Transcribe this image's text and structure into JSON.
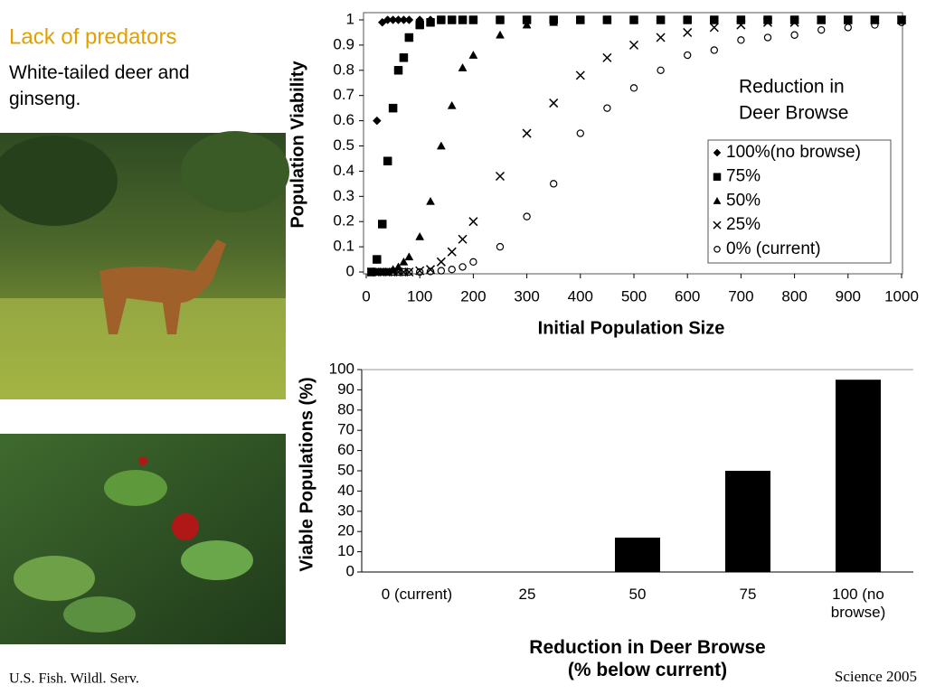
{
  "slide": {
    "title": "Lack of predators",
    "subtitle": "White-tailed deer and ginseng.",
    "credit_left": "U.S. Fish. Wildl. Serv.",
    "credit_right": "Science 2005"
  },
  "chart_data": [
    {
      "type": "scatter",
      "y_label": "Population Viability",
      "x_label": "Initial Population Size",
      "legend_title": [
        "Reduction in",
        "Deer Browse"
      ],
      "x": [
        10,
        20,
        30,
        40,
        50,
        60,
        70,
        80,
        100,
        120,
        140,
        160,
        180,
        200,
        250,
        300,
        350,
        400,
        450,
        500,
        550,
        600,
        650,
        700,
        750,
        800,
        850,
        900,
        950,
        1000
      ],
      "series": [
        {
          "name": "100%(no browse)",
          "marker": "diamond",
          "color": "#000000",
          "values": [
            0,
            0.6,
            0.99,
            1,
            1,
            1,
            1,
            1,
            1,
            1,
            1,
            1,
            1,
            1,
            1,
            1,
            1,
            1,
            1,
            1,
            1,
            1,
            1,
            1,
            1,
            1,
            1,
            1,
            1,
            1
          ]
        },
        {
          "name": "75%",
          "marker": "square",
          "color": "#000000",
          "values": [
            0,
            0.05,
            0.19,
            0.44,
            0.65,
            0.8,
            0.85,
            0.93,
            0.98,
            0.99,
            1,
            1,
            1,
            1,
            1,
            1,
            1,
            1,
            1,
            1,
            1,
            1,
            1,
            1,
            1,
            1,
            1,
            1,
            1,
            1
          ]
        },
        {
          "name": "50%",
          "marker": "triangle",
          "color": "#000000",
          "values": [
            0,
            0,
            0,
            0,
            0.01,
            0.02,
            0.04,
            0.06,
            0.14,
            0.28,
            0.5,
            0.66,
            0.81,
            0.86,
            0.94,
            0.98,
            0.99,
            1,
            1,
            1,
            1,
            1,
            1,
            1,
            1,
            1,
            1,
            1,
            1,
            1
          ]
        },
        {
          "name": "25%",
          "marker": "x",
          "color": "#000000",
          "values": [
            0,
            0,
            0,
            0,
            0,
            0,
            0,
            0,
            0.005,
            0.01,
            0.04,
            0.08,
            0.13,
            0.2,
            0.38,
            0.55,
            0.67,
            0.78,
            0.85,
            0.9,
            0.93,
            0.95,
            0.97,
            0.98,
            0.99,
            0.99,
            1,
            1,
            1,
            1
          ]
        },
        {
          "name": "0% (current)",
          "marker": "circle",
          "color": "#000000",
          "values": [
            0,
            0,
            0,
            0,
            0,
            0,
            0,
            0,
            0,
            0.002,
            0.005,
            0.01,
            0.02,
            0.04,
            0.1,
            0.22,
            0.35,
            0.55,
            0.65,
            0.73,
            0.8,
            0.86,
            0.88,
            0.92,
            0.93,
            0.94,
            0.96,
            0.97,
            0.98,
            0.99
          ]
        }
      ],
      "xlim": [
        0,
        1000
      ],
      "xticks": [
        0,
        100,
        200,
        300,
        400,
        500,
        600,
        700,
        800,
        900,
        1000
      ],
      "ylim": [
        0,
        1
      ],
      "yticks": [
        0,
        0.1,
        0.2,
        0.3,
        0.4,
        0.5,
        0.6,
        0.7,
        0.8,
        0.9,
        1
      ]
    },
    {
      "type": "bar",
      "y_label": "Viable Populations (%)",
      "x_label": "Reduction in Deer Browse (% below current)",
      "categories": [
        "0 (current)",
        "25",
        "50",
        "75",
        "100 (no browse)"
      ],
      "values": [
        0,
        0,
        17,
        50,
        95
      ],
      "color": "#000000",
      "ylim": [
        0,
        100
      ],
      "yticks": [
        0,
        10,
        20,
        30,
        40,
        50,
        60,
        70,
        80,
        90,
        100
      ]
    }
  ]
}
